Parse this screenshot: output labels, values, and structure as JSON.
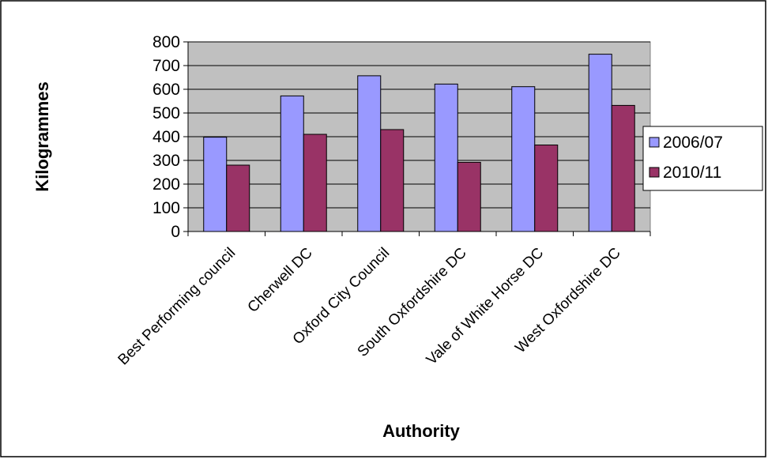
{
  "chart_data": {
    "type": "bar",
    "title": "",
    "xlabel": "Authority",
    "ylabel": "Kilogrammes",
    "ylim": [
      0,
      800
    ],
    "yticks": [
      0,
      100,
      200,
      300,
      400,
      500,
      600,
      700,
      800
    ],
    "grid": true,
    "legend_position": "right",
    "categories": [
      "Best Performing council",
      "Cherwell DC",
      "Oxford City Council",
      "South Oxfordshire DC",
      "Vale of White Horse DC",
      "West Oxfordshire DC"
    ],
    "series": [
      {
        "name": "2006/07",
        "color": "#9999ff",
        "values": [
          398,
          572,
          657,
          622,
          611,
          748
        ]
      },
      {
        "name": "2010/11",
        "color": "#993366",
        "values": [
          280,
          410,
          430,
          292,
          365,
          532
        ]
      }
    ],
    "plot_background": "#c0c0c0"
  }
}
